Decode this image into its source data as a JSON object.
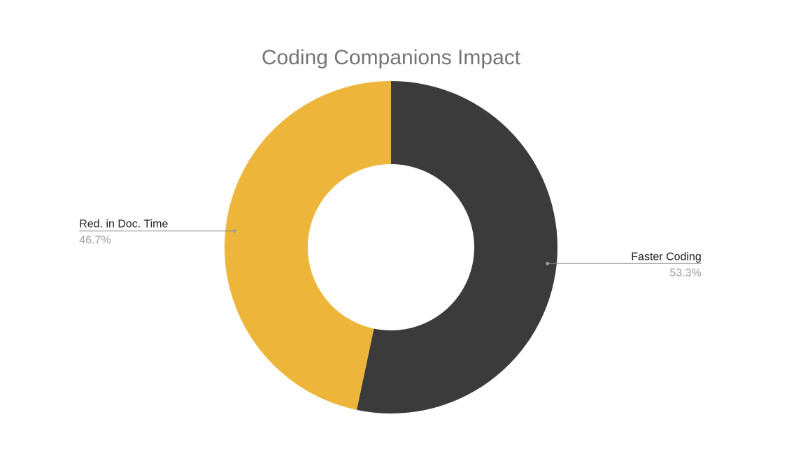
{
  "chart_data": {
    "type": "pie",
    "title": "Coding Companions Impact",
    "donut": true,
    "slices": [
      {
        "label": "Faster Coding",
        "value": 53.3,
        "display": "53.3%",
        "color": "#3b3b3b"
      },
      {
        "label": "Red. in Doc. Time",
        "value": 46.7,
        "display": "46.7%",
        "color": "#edb63b"
      }
    ],
    "start_angle_deg": 0,
    "direction": "clockwise",
    "legend": "none",
    "labels_position": "outside-with-leader-lines"
  }
}
